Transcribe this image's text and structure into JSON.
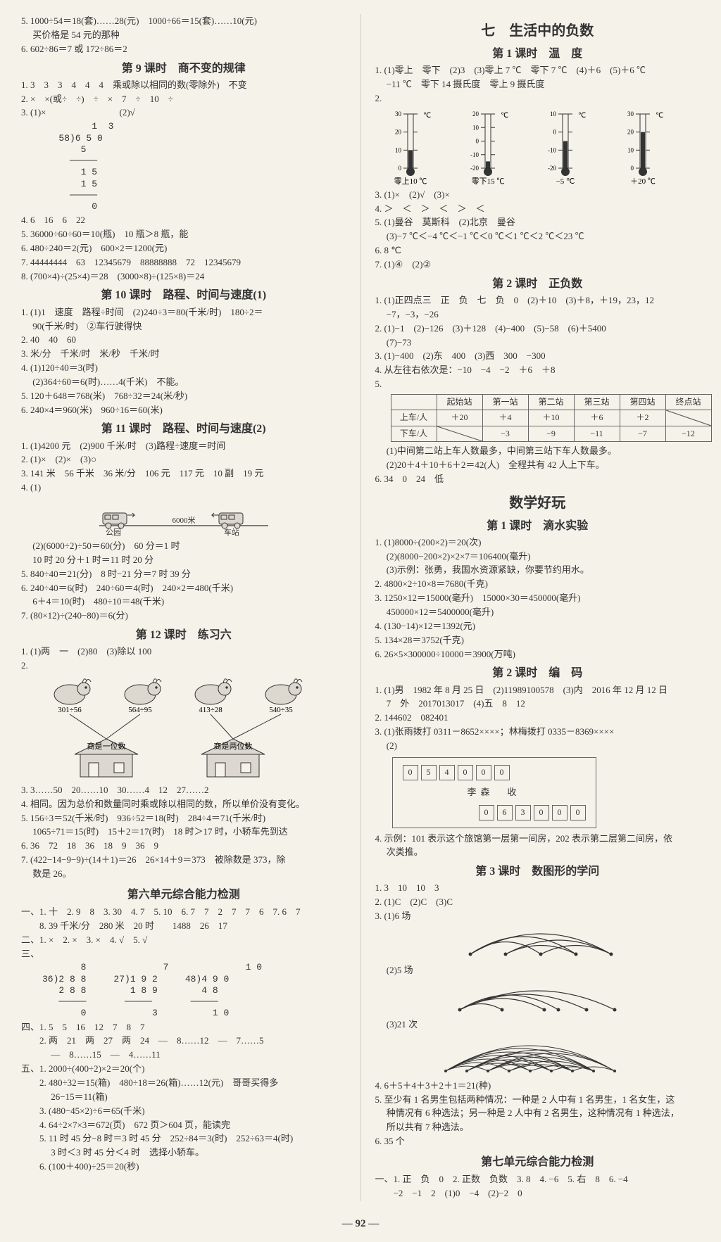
{
  "left": {
    "pre": [
      "5. 1000÷54＝18(套)……28(元)　1000÷66＝15(套)……10(元)",
      "　 买价格是 54 元的那种",
      "6. 602÷86＝7 或 172÷86＝2"
    ],
    "l9_title": "第 9 课时　商不变的规律",
    "l9": [
      "1. 3　3　3　4　4　4　乘或除以相同的数(零除外)　不变",
      "2. ×　×(或÷　÷)　÷　×　7　÷　10　÷",
      "3. (1)×　　　　　　　　(2)√"
    ],
    "l9_longdiv": "         1  3\n   58)6 5 0\n       5\n     ─────\n       1 5\n       1 5\n     ─────\n         0",
    "l9b": [
      "4. 6　16　6　22",
      "5. 36000÷60÷60＝10(瓶)　10 瓶＞8 瓶，能",
      "6. 480÷240＝2(元)　600×2＝1200(元)",
      "7. 44444444　63　12345679　88888888　72　12345679",
      "8. (700×4)÷(25×4)＝28　(3000×8)÷(125×8)＝24"
    ],
    "l10_title": "第 10 课时　路程、时间与速度(1)",
    "l10": [
      "1. (1)1　速度　路程÷时间　(2)240÷3＝80(千米/时)　180÷2＝",
      "　 90(千米/时)　②车行驶得快",
      "2. 40　40　60",
      "3. 米/分　千米/时　米/秒　千米/时",
      "4. (1)120÷40＝3(时)",
      "　 (2)364÷60＝6(时)……4(千米)　不能。",
      "5. 120＋648＝768(米)　768÷32＝24(米/秒)",
      "6. 240×4＝960(米)　960÷16＝60(米)"
    ],
    "l11_title": "第 11 课时　路程、时间与速度(2)",
    "l11a": [
      "1. (1)4200 元　(2)900 千米/时　(3)路程÷速度＝时间",
      "2. (1)×　(2)×　(3)○",
      "3. 141 米　56 千米　36 米/分　106 元　117 元　10 副　19 元",
      "4. (1)"
    ],
    "l11_svg_label_left": "公园",
    "l11_svg_label_right": "车站",
    "l11_svg_label_mid": "6000米",
    "l11b": [
      "　 (2)(6000÷2)÷50＝60(分)　60 分＝1 时",
      "　 10 时 20 分＋1 时＝11 时 20 分",
      "5. 840÷40＝21(分)　8 时−21 分＝7 时 39 分",
      "6. 240÷40＝6(时)　240÷60＝4(时)　240×2＝480(千米)",
      "　 6＋4＝10(时)　480÷10＝48(千米)",
      "7. (80×12)÷(240−80)＝6(分)"
    ],
    "l12_title": "第 12 课时　练习六",
    "l12a": [
      "1. (1)两　一　(2)80　(3)除以 100",
      "2."
    ],
    "rabbit_labels": [
      "301÷56",
      "564÷95",
      "413÷28",
      "540÷35"
    ],
    "house_labels": [
      "商是一位数",
      "商是两位数"
    ],
    "l12b": [
      "3. 3……50　20……10　30……4　12　27……2",
      "4. 相同。因为总价和数量同时乘或除以相同的数，所以单价没有变化。",
      "5. 156÷3＝52(千米/时)　936÷52＝18(时)　284÷4＝71(千米/时)",
      "　 1065÷71＝15(时)　15＋2＝17(时)　18 时＞17 时，小轿车先到达",
      "6. 36　72　18　36　18　9　36　9",
      "7. (422−14−9−9)÷(14＋1)＝26　26×14＋9＝373　被除数是 373，除",
      "　 数是 26。"
    ],
    "test6_title": "第六单元综合能力检测",
    "test6": [
      "一、1. 十　2. 9　8　3. 30　4. 7　5. 10　6. 7　7　2　7　7　6　7. 6　7",
      "　　8. 39 千米/分　280 米　20 时　　1488　26　17",
      "二、1. ×　2. ×　3. ×　4. √　5. √",
      "三、"
    ],
    "test6_ld": "       8              7              1 0\n36)2 8 8     27)1 9 2     48)4 9 0\n   2 8 8        1 8 9        4 8\n   ─────       ─────       ─────\n       0            3          1 0",
    "test6b": [
      "四、1. 5　5　16　12　7　8　7",
      "　　2. 两　21　两　27　两　24　—　8……12　—　7……5",
      "　　　 —　8……15　—　4……11",
      "五、1. 2000÷(400÷2)×2＝20(个)",
      "　　2. 480÷32＝15(箱)　480÷18＝26(箱)……12(元)　哥哥买得多",
      "　　　 26−15＝11(箱)",
      "　　3. (480−45×2)÷6＝65(千米)",
      "　　4. 64÷2×7×3＝672(页)　672 页＞604 页，能读完",
      "　　5. 11 时 45 分−8 时＝3 时 45 分　252÷84＝3(时)　252÷63＝4(时)",
      "　　　 3 时＜3 时 45 分＜4 时　选择小轿车。",
      "　　6. (100＋400)÷25＝20(秒)"
    ]
  },
  "right": {
    "u7_title": "七　生活中的负数",
    "u7_l1_title": "第 1 课时　温　度",
    "u7_l1a": [
      "1. (1)零上　零下　(2)3　(3)零上 7 ℃　零下 7 ℃　(4)＋6　(5)＋6 ℃",
      "　 −11 ℃　零下 14 摄氏度　零上 9 摄氏度",
      "2."
    ],
    "thermo": [
      {
        "label": "零上10 ℃",
        "ticks": [
          30,
          20,
          10,
          0
        ],
        "fill": 10,
        "unit": "℃"
      },
      {
        "label": "零下15 ℃",
        "ticks": [
          20,
          10,
          0,
          -10,
          -20
        ],
        "fill": -15,
        "unit": "℃"
      },
      {
        "label": "−5 ℃",
        "ticks": [
          10,
          0,
          -10,
          -20
        ],
        "fill": -5,
        "unit": "℃"
      },
      {
        "label": "＋20 ℃",
        "ticks": [
          30,
          20,
          10,
          0
        ],
        "fill": 20,
        "unit": "℃"
      }
    ],
    "u7_l1b": [
      "3. (1)×　(2)√　(3)×",
      "4. ＞　＜　＞　＜　＞　＜",
      "5. (1)曼谷　莫斯科　(2)北京　曼谷",
      "　 (3)−7 ℃＜−4 ℃＜−1 ℃＜0 ℃＜1 ℃＜2 ℃＜23 ℃",
      "6. 8 ℃",
      "7. (1)④　(2)②"
    ],
    "u7_l2_title": "第 2 课时　正负数",
    "u7_l2": [
      "1. (1)正四点三　正　负　七　负　0　(2)＋10　(3)＋8，＋19，23，12",
      "　 −7，−3，−26",
      "2. (1)−1　(2)−126　(3)＋128　(4)−400　(5)−58　(6)＋5400",
      "　 (7)−73",
      "3. (1)−400　(2)东　400　(3)西　300　−300",
      "4. 从左往右依次是：−10　−4　−2　＋6　＋8",
      "5."
    ],
    "bus_header": [
      "",
      "起始站",
      "第一站",
      "第二站",
      "第三站",
      "第四站",
      "终点站"
    ],
    "bus_rows": [
      [
        "上车/人",
        "＋20",
        "＋4",
        "＋10",
        "＋6",
        "＋2",
        "/"
      ],
      [
        "下车/人",
        "/",
        "−3",
        "−9",
        "−11",
        "−7",
        "−12"
      ]
    ],
    "u7_l2b": [
      "　 (1)中间第二站上车人数最多，中间第三站下车人数最多。",
      "　 (2)20＋4＋10＋6＋2＝42(人)　全程共有 42 人上下车。",
      "6. 34　0　24　低"
    ],
    "fun_title": "数学好玩",
    "fun_l1_title": "第 1 课时　滴水实验",
    "fun_l1": [
      "1. (1)8000÷(200×2)＝20(次)",
      "　 (2)(8000−200×2)×2×7＝106400(毫升)",
      "　 (3)示例：张勇，我国水资源紧缺，你要节约用水。",
      "2. 4800×2÷10×8＝7680(千克)",
      "3. 1250×12＝15000(毫升)　15000×30＝450000(毫升)",
      "　 450000×12＝5400000(毫升)",
      "4. (130−14)×12＝1392(元)",
      "5. 134×28＝3752(千克)",
      "6. 26×5×300000÷10000＝3900(万吨)"
    ],
    "fun_l2_title": "第 2 课时　编　码",
    "fun_l2a": [
      "1. (1)男　1982 年 8 月 25 日　(2)11989100578　(3)内　2016 年 12 月 12 日",
      "　 7　外　2017013017　(4)五　8　12",
      "2. 144602　082401",
      "3. (1)张雨拨打 0311－8652××××；林梅拨打 0335－8369××××",
      "　 (2)"
    ],
    "env_zip": [
      "0",
      "5",
      "4",
      "0",
      "0",
      "0"
    ],
    "env_name": "李森　收",
    "env_zip2": [
      "0",
      "6",
      "3",
      "0",
      "0",
      "0"
    ],
    "fun_l2b": [
      "4. 示例：101 表示这个旅馆第一层第一间房，202 表示第二层第二间房，依",
      "　 次类推。"
    ],
    "fun_l3_title": "第 3 课时　数图形的学问",
    "fun_l3": [
      "1. 3　10　10　3",
      "2. (1)C　(2)C　(3)C",
      "3. (1)6 场"
    ],
    "fun_l3b": [
      "　 (2)5 场"
    ],
    "fun_l3c": [
      "　 (3)21 次"
    ],
    "fun_l3d": [
      "4. 6＋5＋4＋3＋2＋1＝21(种)",
      "5. 至少有 1 名男生包括两种情况：一种是 2 人中有 1 名男生，1 名女生，这",
      "　 种情况有 6 种选法；另一种是 2 人中有 2 名男生，这种情况有 1 种选法，",
      "　 所以共有 7 种选法。",
      "6. 35 个"
    ],
    "test7_title": "第七单元综合能力检测",
    "test7": [
      "一、1. 正　负　0　2. 正数　负数　3. 8　4. −6　5. 右　8　6. −4",
      "　　−2　−1　2　(1)0　−4　(2)−2　0"
    ]
  },
  "page_number": "92"
}
